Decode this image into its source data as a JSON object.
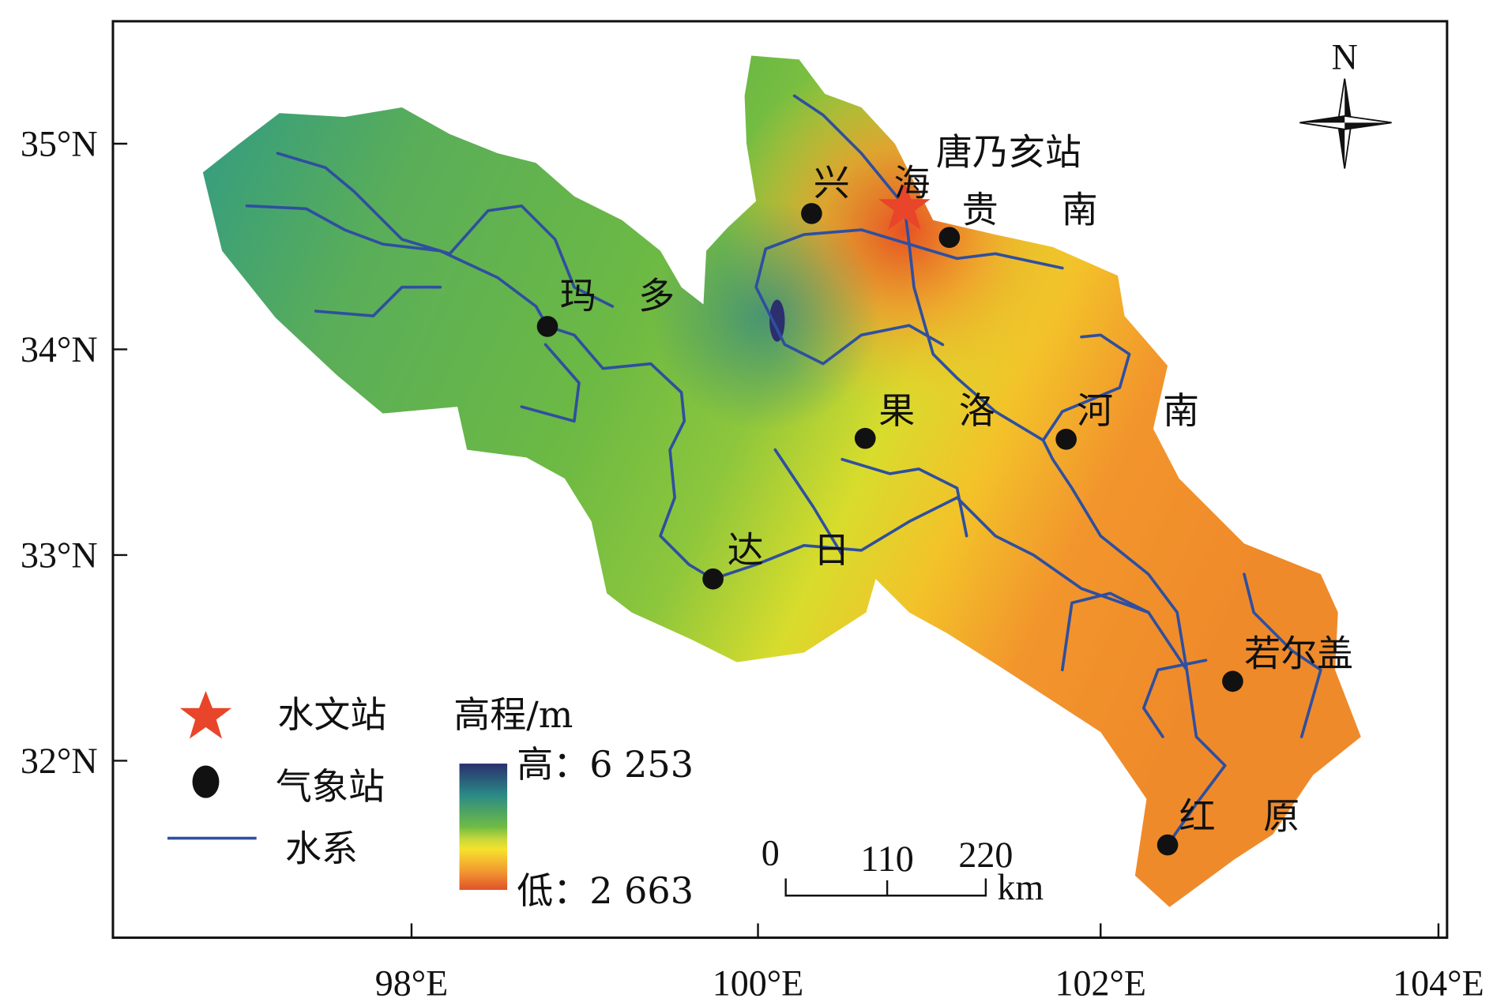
{
  "map": {
    "axes": {
      "lon_ticks": [
        "98°E",
        "100°E",
        "102°E",
        "104°E"
      ],
      "lat_ticks": [
        "35°N",
        "34°N",
        "33°N",
        "32°N"
      ]
    },
    "north_arrow_label": "N",
    "hydro_station": {
      "name": "唐乃亥站",
      "color": "#e8452a"
    },
    "met_stations": [
      {
        "name": "兴海"
      },
      {
        "name": "贵南"
      },
      {
        "name": "玛多"
      },
      {
        "name": "果洛"
      },
      {
        "name": "河南"
      },
      {
        "name": "达日"
      },
      {
        "name": "若尔盖"
      },
      {
        "name": "红原"
      }
    ],
    "legend": {
      "hydro_station_label": "水文站",
      "met_station_label": "气象站",
      "river_label": "水系",
      "elevation_title": "高程/m",
      "elevation_high": "高：6 253",
      "elevation_low": "低：2 663"
    },
    "scale_bar": {
      "ticks": [
        "0",
        "110",
        "220"
      ],
      "unit": "km"
    },
    "colors": {
      "river": "#2f4f9f",
      "elevation_high": "#2b2f6e",
      "elevation_mid": "#6fbb44",
      "elevation_yellow": "#f7e12c",
      "elevation_low": "#e0522a"
    }
  }
}
